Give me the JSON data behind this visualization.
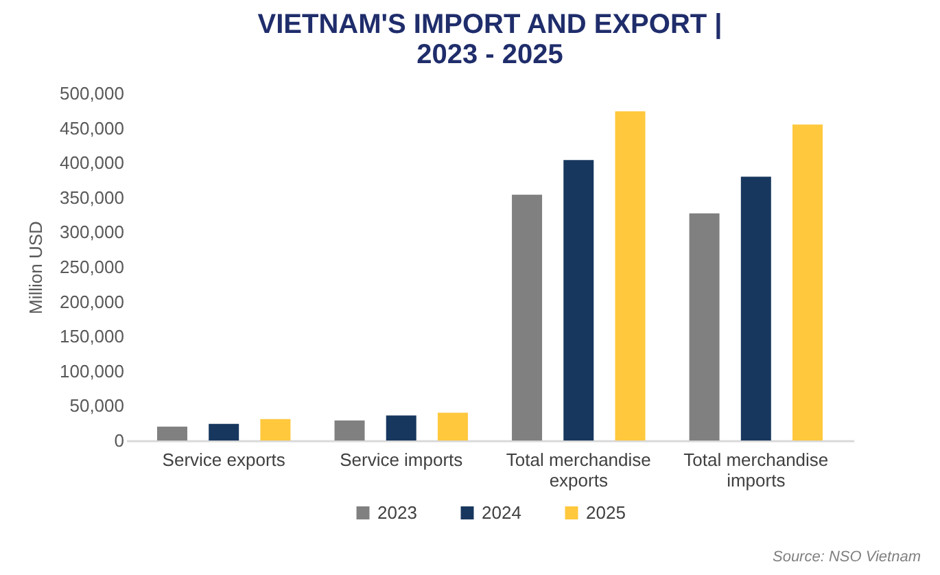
{
  "chart_data": {
    "type": "bar",
    "title": "VIETNAM'S IMPORT AND EXPORT | 2023 - 2025",
    "ylabel": "Million USD",
    "categories": [
      "Service exports",
      "Service imports",
      "Total merchandise exports",
      "Total merchandise imports"
    ],
    "series": [
      {
        "name": "2023",
        "color": "#808080",
        "values": [
          20000,
          29000,
          354000,
          327000
        ]
      },
      {
        "name": "2024",
        "color": "#17375e",
        "values": [
          24000,
          36000,
          404000,
          380000
        ]
      },
      {
        "name": "2025",
        "color": "#ffc83d",
        "values": [
          31000,
          40000,
          474000,
          455000
        ]
      }
    ],
    "ylim": [
      0,
      500000
    ],
    "yticks": [
      0,
      {
        "value": 50000,
        "label": "50,000"
      },
      {
        "value": 100000,
        "label": "100,000"
      },
      {
        "value": 150000,
        "label": "150,000"
      },
      {
        "value": 200000,
        "label": "200,000"
      },
      {
        "value": 250000,
        "label": "250,000"
      },
      {
        "value": 300000,
        "label": "300,000"
      },
      {
        "value": 350000,
        "label": "350,000"
      },
      {
        "value": 400000,
        "label": "400,000"
      },
      {
        "value": 450000,
        "label": "450,000"
      },
      {
        "value": 500000,
        "label": "500,000"
      }
    ],
    "grid": false,
    "legend": "bottom",
    "annotations": [
      "Source: NSO Vietnam"
    ]
  }
}
